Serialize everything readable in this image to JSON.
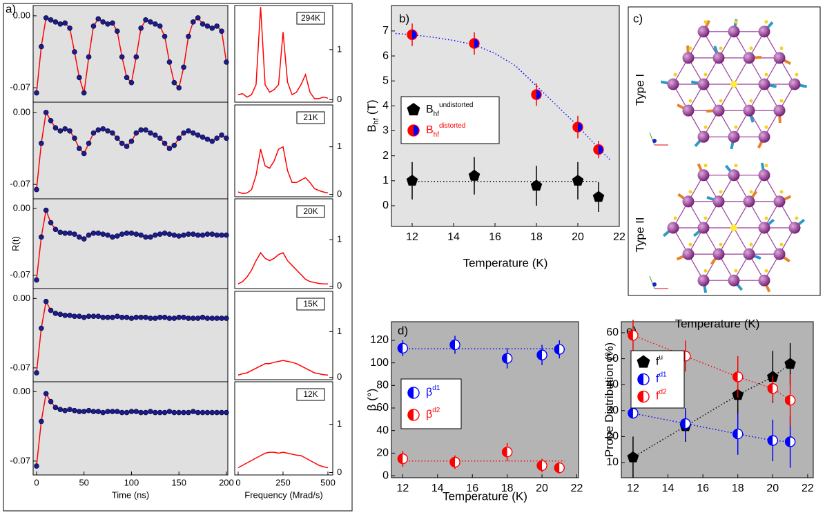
{
  "chart_data": [
    {
      "type": "scatter-line",
      "label": "a)",
      "x": [
        0,
        5,
        10,
        15,
        20,
        25,
        30,
        35,
        40,
        45,
        50,
        55,
        60,
        65,
        70,
        75,
        80,
        85,
        90,
        95,
        100,
        105,
        110,
        115,
        120,
        125,
        130,
        135,
        140,
        145,
        150,
        155,
        160,
        165,
        170,
        175,
        180,
        185,
        190,
        195,
        200
      ],
      "values": [
        -0.075,
        -0.03,
        -0.002,
        -0.004,
        -0.006,
        -0.008,
        -0.007,
        -0.012,
        -0.035,
        -0.06,
        -0.075,
        -0.04,
        -0.01,
        -0.003,
        -0.006,
        -0.008,
        -0.007,
        -0.015,
        -0.04,
        -0.06,
        -0.065,
        -0.04,
        -0.012,
        -0.004,
        -0.006,
        -0.008,
        -0.01,
        -0.02,
        -0.045,
        -0.065,
        -0.07,
        -0.05,
        -0.02,
        -0.006,
        -0.002,
        -0.008,
        -0.01,
        -0.012,
        -0.01,
        -0.015,
        -0.045
      ],
      "xlim": [
        -3.6,
        201.5
      ],
      "ylim": [
        -0.084,
        0.01
      ],
      "yticks": [
        {
          "value": 0,
          "label": "0.00"
        },
        {
          "value": -0.07,
          "label": "-0.07"
        }
      ],
      "color": "#1c1c8a",
      "line_color": "#ff0000",
      "background": "#e0e0e0"
    },
    {
      "type": "scatter-line",
      "x": [
        0,
        5,
        10,
        15,
        20,
        25,
        30,
        35,
        40,
        45,
        50,
        55,
        60,
        65,
        70,
        75,
        80,
        85,
        90,
        95,
        100,
        105,
        110,
        115,
        120,
        125,
        130,
        135,
        140,
        145,
        150,
        155,
        160,
        165,
        170,
        175,
        180,
        185,
        190,
        195,
        200
      ],
      "values": [
        -0.075,
        -0.03,
        0.0,
        -0.008,
        -0.015,
        -0.018,
        -0.016,
        -0.018,
        -0.025,
        -0.035,
        -0.04,
        -0.03,
        -0.02,
        -0.017,
        -0.016,
        -0.018,
        -0.02,
        -0.025,
        -0.03,
        -0.033,
        -0.028,
        -0.02,
        -0.017,
        -0.017,
        -0.02,
        -0.022,
        -0.025,
        -0.03,
        -0.035,
        -0.032,
        -0.025,
        -0.02,
        -0.018,
        -0.02,
        -0.022,
        -0.024,
        -0.026,
        -0.028,
        -0.025,
        -0.022,
        -0.025
      ],
      "xlim": [
        -3.6,
        201.5
      ],
      "ylim": [
        -0.084,
        0.01
      ],
      "yticks": [
        {
          "value": 0,
          "label": "0.00"
        },
        {
          "value": -0.07,
          "label": "-0.07"
        }
      ],
      "color": "#1c1c8a",
      "line_color": "#ff0000",
      "background": "#e0e0e0"
    },
    {
      "type": "scatter-line",
      "ylabel": "R(t)",
      "x": [
        0,
        5,
        10,
        15,
        20,
        25,
        30,
        35,
        40,
        45,
        50,
        55,
        60,
        65,
        70,
        75,
        80,
        85,
        90,
        95,
        100,
        105,
        110,
        115,
        120,
        125,
        130,
        135,
        140,
        145,
        150,
        155,
        160,
        165,
        170,
        175,
        180,
        185,
        190,
        195,
        200
      ],
      "values": [
        -0.075,
        -0.03,
        -0.002,
        -0.015,
        -0.022,
        -0.025,
        -0.026,
        -0.026,
        -0.027,
        -0.03,
        -0.032,
        -0.028,
        -0.026,
        -0.026,
        -0.027,
        -0.028,
        -0.03,
        -0.029,
        -0.027,
        -0.026,
        -0.026,
        -0.027,
        -0.028,
        -0.03,
        -0.03,
        -0.028,
        -0.027,
        -0.026,
        -0.027,
        -0.028,
        -0.029,
        -0.028,
        -0.027,
        -0.027,
        -0.028,
        -0.028,
        -0.027,
        -0.027,
        -0.028,
        -0.028,
        -0.028
      ],
      "xlim": [
        -3.6,
        201.5
      ],
      "ylim": [
        -0.084,
        0.01
      ],
      "yticks": [
        {
          "value": 0,
          "label": "0.00"
        },
        {
          "value": -0.07,
          "label": "-0.07"
        }
      ],
      "color": "#1c1c8a",
      "line_color": "#ff0000",
      "background": "#e0e0e0"
    },
    {
      "type": "scatter-line",
      "x": [
        0,
        5,
        10,
        15,
        20,
        25,
        30,
        35,
        40,
        45,
        50,
        55,
        60,
        65,
        70,
        75,
        80,
        85,
        90,
        95,
        100,
        105,
        110,
        115,
        120,
        125,
        130,
        135,
        140,
        145,
        150,
        155,
        160,
        165,
        170,
        175,
        180,
        185,
        190,
        195,
        200
      ],
      "values": [
        -0.075,
        -0.03,
        -0.003,
        -0.012,
        -0.015,
        -0.016,
        -0.017,
        -0.017,
        -0.018,
        -0.018,
        -0.019,
        -0.018,
        -0.018,
        -0.018,
        -0.019,
        -0.019,
        -0.019,
        -0.018,
        -0.019,
        -0.019,
        -0.02,
        -0.019,
        -0.019,
        -0.019,
        -0.02,
        -0.02,
        -0.019,
        -0.019,
        -0.02,
        -0.02,
        -0.019,
        -0.019,
        -0.02,
        -0.02,
        -0.02,
        -0.019,
        -0.02,
        -0.02,
        -0.02,
        -0.02,
        -0.02
      ],
      "xlim": [
        -3.6,
        201.5
      ],
      "ylim": [
        -0.084,
        0.01
      ],
      "yticks": [
        {
          "value": 0,
          "label": "0.00"
        },
        {
          "value": -0.07,
          "label": "-0.07"
        }
      ],
      "color": "#1c1c8a",
      "line_color": "#ff0000",
      "background": "#e0e0e0"
    },
    {
      "type": "scatter-line",
      "xlabel": "Time (ns)",
      "xticks": [
        0,
        50,
        100,
        150,
        200
      ],
      "x": [
        0,
        5,
        10,
        15,
        20,
        25,
        30,
        35,
        40,
        45,
        50,
        55,
        60,
        65,
        70,
        75,
        80,
        85,
        90,
        95,
        100,
        105,
        110,
        115,
        120,
        125,
        130,
        135,
        140,
        145,
        150,
        155,
        160,
        165,
        170,
        175,
        180,
        185,
        190,
        195,
        200
      ],
      "values": [
        -0.075,
        -0.03,
        -0.002,
        -0.01,
        -0.016,
        -0.018,
        -0.019,
        -0.018,
        -0.019,
        -0.02,
        -0.02,
        -0.019,
        -0.02,
        -0.02,
        -0.021,
        -0.02,
        -0.02,
        -0.02,
        -0.021,
        -0.021,
        -0.02,
        -0.02,
        -0.021,
        -0.021,
        -0.02,
        -0.021,
        -0.021,
        -0.021,
        -0.02,
        -0.021,
        -0.021,
        -0.021,
        -0.021,
        -0.02,
        -0.021,
        -0.021,
        -0.021,
        -0.021,
        -0.021,
        -0.021,
        -0.021
      ],
      "xlim": [
        -3.6,
        201.5
      ],
      "ylim": [
        -0.084,
        0.01
      ],
      "yticks": [
        {
          "value": 0,
          "label": "0.00"
        },
        {
          "value": -0.07,
          "label": "-0.07"
        }
      ],
      "color": "#1c1c8a",
      "line_color": "#ff0000",
      "background": "#e0e0e0"
    },
    {
      "type": "line",
      "annotation": "294K",
      "x": [
        0,
        25,
        50,
        75,
        100,
        125,
        150,
        175,
        200,
        225,
        250,
        275,
        300,
        325,
        350,
        375,
        400,
        425,
        450,
        475,
        500
      ],
      "values": [
        0.1,
        0.12,
        0.05,
        0.1,
        0.3,
        1.85,
        0.3,
        0.15,
        0.2,
        0.3,
        1.35,
        0.35,
        0.1,
        0.15,
        0.3,
        0.5,
        0.15,
        0.02,
        0.02,
        0.05,
        0.03
      ],
      "xlim": [
        -19,
        527
      ],
      "ylim": [
        -0.05,
        1.88
      ],
      "yticks": [
        0,
        1
      ],
      "y_axis": "right",
      "color": "#ff0000",
      "background": "#ffffff"
    },
    {
      "type": "line",
      "annotation": "21K",
      "x": [
        0,
        25,
        50,
        75,
        100,
        125,
        150,
        175,
        200,
        225,
        250,
        275,
        300,
        325,
        350,
        375,
        400,
        425,
        450,
        475,
        500
      ],
      "values": [
        0.05,
        0.02,
        0.03,
        0.1,
        0.4,
        0.95,
        0.6,
        0.55,
        0.7,
        0.95,
        1.0,
        0.5,
        0.25,
        0.25,
        0.3,
        0.35,
        0.25,
        0.12,
        0.08,
        0.05,
        0.03
      ],
      "xlim": [
        -19,
        527
      ],
      "ylim": [
        -0.05,
        1.88
      ],
      "yticks": [
        0,
        1
      ],
      "y_axis": "right",
      "color": "#ff0000",
      "background": "#ffffff"
    },
    {
      "type": "line",
      "annotation": "20K",
      "x": [
        0,
        25,
        50,
        75,
        100,
        125,
        150,
        175,
        200,
        225,
        250,
        275,
        300,
        325,
        350,
        375,
        400,
        425,
        450,
        475,
        500
      ],
      "values": [
        0.05,
        0.1,
        0.2,
        0.35,
        0.55,
        0.72,
        0.6,
        0.55,
        0.6,
        0.68,
        0.72,
        0.55,
        0.45,
        0.35,
        0.25,
        0.15,
        0.1,
        0.08,
        0.06,
        0.05,
        0.05
      ],
      "xlim": [
        -19,
        527
      ],
      "ylim": [
        -0.05,
        1.88
      ],
      "yticks": [
        0,
        1
      ],
      "y_axis": "right",
      "color": "#ff0000",
      "background": "#ffffff"
    },
    {
      "type": "line",
      "annotation": "15K",
      "x": [
        0,
        25,
        50,
        75,
        100,
        125,
        150,
        175,
        200,
        225,
        250,
        275,
        300,
        325,
        350,
        375,
        400,
        425,
        450,
        475,
        500
      ],
      "values": [
        0.05,
        0.08,
        0.1,
        0.15,
        0.2,
        0.25,
        0.3,
        0.3,
        0.33,
        0.35,
        0.37,
        0.35,
        0.33,
        0.3,
        0.25,
        0.2,
        0.15,
        0.1,
        0.08,
        0.06,
        0.05
      ],
      "xlim": [
        -19,
        527
      ],
      "ylim": [
        -0.05,
        1.88
      ],
      "yticks": [
        0,
        1
      ],
      "y_axis": "right",
      "color": "#ff0000",
      "background": "#ffffff"
    },
    {
      "type": "line",
      "annotation": "12K",
      "xlabel": "Frequency (Mrad/s)",
      "xticks": [
        0,
        250,
        500
      ],
      "x": [
        0,
        25,
        50,
        75,
        100,
        125,
        150,
        175,
        200,
        225,
        250,
        275,
        300,
        325,
        350,
        375,
        400,
        425,
        450,
        475,
        500
      ],
      "values": [
        0.1,
        0.15,
        0.2,
        0.25,
        0.3,
        0.35,
        0.4,
        0.42,
        0.42,
        0.4,
        0.42,
        0.4,
        0.38,
        0.36,
        0.35,
        0.3,
        0.25,
        0.2,
        0.15,
        0.12,
        0.1
      ],
      "xlim": [
        -19,
        527
      ],
      "ylim": [
        -0.05,
        1.88
      ],
      "yticks": [
        0,
        1
      ],
      "y_axis": "right",
      "color": "#ff0000",
      "background": "#ffffff"
    },
    {
      "type": "errorbar-scatter",
      "label": "b)",
      "xlabel": "Temperature (K)",
      "ylabel": "B",
      "ylabel_sub": "hf",
      "ylabel_rest": "(T)",
      "x": [
        12,
        15,
        18,
        20,
        21
      ],
      "xlim": [
        11,
        22
      ],
      "ylim": [
        -0.83,
        8.02
      ],
      "xticks": [
        12,
        14,
        16,
        18,
        20,
        22
      ],
      "yticks": [
        0,
        1,
        2,
        3,
        4,
        5,
        6,
        7
      ],
      "legend": "center left",
      "background": "#e3e3e3",
      "series": [
        {
          "name": "B",
          "name_sub": "hf",
          "name_sup": "undistorted",
          "marker": "pentagon",
          "color": "#000000",
          "values": [
            1.0,
            1.2,
            0.8,
            1.0,
            0.35
          ],
          "errors": [
            0.75,
            0.75,
            0.8,
            0.75,
            0.6
          ],
          "fit": {
            "x": [
              12,
              21
            ],
            "values": [
              0.97,
              0.97
            ]
          }
        },
        {
          "name": "B",
          "name_sub": "hf",
          "name_sup": "distorted",
          "marker": "half",
          "color": "#ff0000",
          "color2": "#0000ff",
          "values": [
            6.85,
            6.5,
            4.45,
            3.15,
            2.25
          ],
          "errors": [
            0.45,
            0.45,
            0.45,
            0.45,
            0.35
          ],
          "fit": {
            "x": [
              11.2,
              12,
              13,
              14,
              15,
              16,
              17,
              18,
              19,
              20,
              21,
              21.6
            ],
            "values": [
              6.9,
              6.85,
              6.75,
              6.62,
              6.45,
              6.1,
              5.6,
              4.8,
              4.0,
              3.2,
              2.3,
              1.8
            ]
          },
          "fit_color": "#0000ff"
        }
      ]
    },
    {
      "type": "errorbar-scatter",
      "label": "d)",
      "xlabel": "Temperature (K)",
      "ylabel": "β (°)",
      "x": [
        12,
        15,
        18,
        20,
        21
      ],
      "xlim": [
        11.35,
        22.1
      ],
      "ylim": [
        -1.8,
        136.5
      ],
      "xticks": [
        12,
        14,
        16,
        18,
        20,
        22
      ],
      "yticks": [
        0,
        20,
        40,
        60,
        80,
        100,
        120
      ],
      "legend": "center left",
      "background": "#b4b4b4",
      "series": [
        {
          "name": "β",
          "name_sup": "d1",
          "marker": "half",
          "color": "#0000ff",
          "color2": "#ffffff",
          "values": [
            113,
            116,
            104,
            107,
            112
          ],
          "errors": [
            7,
            8,
            9,
            9,
            8
          ],
          "fit": {
            "x": [
              12,
              21.3
            ],
            "values": [
              112.5,
              112.5
            ]
          }
        },
        {
          "name": "β",
          "name_sup": "d2",
          "marker": "half",
          "color": "#ff0000",
          "color2": "#ffffff",
          "values": [
            15,
            12,
            21,
            9,
            7
          ],
          "errors": [
            7,
            6,
            8,
            6,
            5
          ],
          "fit": {
            "x": [
              12,
              21.3
            ],
            "values": [
              13,
              13
            ]
          }
        }
      ]
    },
    {
      "type": "errorbar-scatter",
      "label": "e)",
      "xlabel": "Temperature (K)",
      "ylabel": "Probe Distribution (%)",
      "x": [
        12,
        15,
        18,
        20,
        21
      ],
      "xlim": [
        11.33,
        22.32
      ],
      "ylim": [
        4.15,
        64.25
      ],
      "xticks": [
        12,
        14,
        16,
        18,
        20,
        22
      ],
      "yticks": [
        10,
        20,
        30,
        40,
        50,
        60
      ],
      "legend": "upper left",
      "background": "#b4b4b4",
      "series": [
        {
          "name": "f",
          "name_sup": "u",
          "marker": "pentagon",
          "color": "#000000",
          "values": [
            12,
            24,
            36,
            43,
            48
          ],
          "errors": [
            8,
            6,
            10,
            10,
            8
          ],
          "connect": true
        },
        {
          "name": "f",
          "name_sup": "d1",
          "marker": "half",
          "color": "#0000ff",
          "color2": "#ffffff",
          "values": [
            29,
            25,
            21,
            18.5,
            18
          ],
          "errors": [
            2,
            6,
            8,
            8,
            10
          ],
          "connect": true
        },
        {
          "name": "f",
          "name_sup": "d2",
          "marker": "half",
          "color": "#ff0000",
          "color2": "#ffffff",
          "values": [
            59,
            51,
            43,
            38.5,
            34
          ],
          "errors": [
            6,
            6,
            8,
            5,
            10
          ],
          "connect": true
        }
      ]
    }
  ],
  "panel_c": {
    "label": "c)",
    "structures": [
      "Type I",
      "Type II"
    ]
  }
}
